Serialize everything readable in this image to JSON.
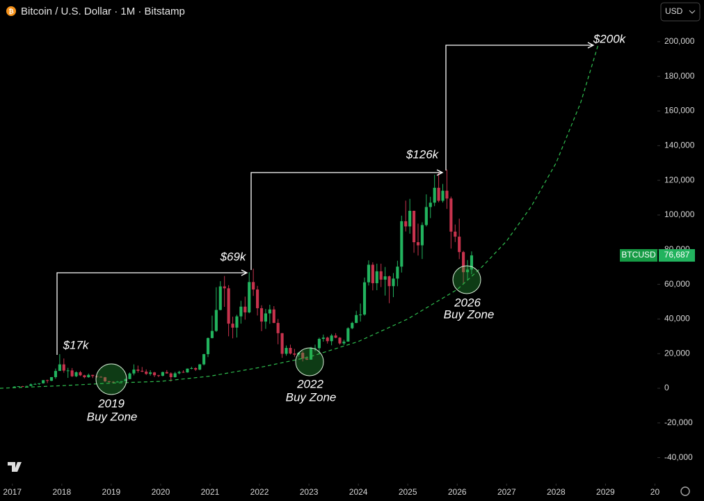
{
  "header": {
    "title": "Bitcoin / U.S. Dollar · 1M · Bitstamp",
    "currency": "USD"
  },
  "chart_data": {
    "type": "candlestick",
    "up_color": "#22b35e",
    "down_color": "#c7334d",
    "grid": false,
    "x": [
      "2017-01",
      "2017-02",
      "2017-03",
      "2017-04",
      "2017-05",
      "2017-06",
      "2017-07",
      "2017-08",
      "2017-09",
      "2017-10",
      "2017-11",
      "2017-12",
      "2018-01",
      "2018-02",
      "2018-03",
      "2018-04",
      "2018-05",
      "2018-06",
      "2018-07",
      "2018-08",
      "2018-09",
      "2018-10",
      "2018-11",
      "2018-12",
      "2019-01",
      "2019-02",
      "2019-03",
      "2019-04",
      "2019-05",
      "2019-06",
      "2019-07",
      "2019-08",
      "2019-09",
      "2019-10",
      "2019-11",
      "2019-12",
      "2020-01",
      "2020-02",
      "2020-03",
      "2020-04",
      "2020-05",
      "2020-06",
      "2020-07",
      "2020-08",
      "2020-09",
      "2020-10",
      "2020-11",
      "2020-12",
      "2021-01",
      "2021-02",
      "2021-03",
      "2021-04",
      "2021-05",
      "2021-06",
      "2021-07",
      "2021-08",
      "2021-09",
      "2021-10",
      "2021-11",
      "2021-12",
      "2022-01",
      "2022-02",
      "2022-03",
      "2022-04",
      "2022-05",
      "2022-06",
      "2022-07",
      "2022-08",
      "2022-09",
      "2022-10",
      "2022-11",
      "2022-12",
      "2023-01",
      "2023-02",
      "2023-03",
      "2023-04",
      "2023-05",
      "2023-06",
      "2023-07",
      "2023-08",
      "2023-09",
      "2023-10",
      "2023-11",
      "2023-12",
      "2024-01",
      "2024-02",
      "2024-03",
      "2024-04",
      "2024-05",
      "2024-06",
      "2024-07",
      "2024-08",
      "2024-09",
      "2024-10",
      "2024-11",
      "2024-12",
      "2025-01",
      "2025-02",
      "2025-03",
      "2025-04",
      "2025-05",
      "2025-06",
      "2025-07",
      "2025-08",
      "2025-09",
      "2025-10",
      "2025-11",
      "2025-12",
      "2026-01",
      "2026-02",
      "2026-03",
      "2026-04"
    ],
    "open": [
      960,
      970,
      1190,
      1080,
      1350,
      2300,
      2480,
      2870,
      4700,
      4340,
      6450,
      10000,
      13800,
      10200,
      10300,
      6930,
      9240,
      7500,
      6390,
      7730,
      7030,
      6630,
      6370,
      4040,
      3740,
      3460,
      3850,
      4100,
      5320,
      8570,
      10800,
      10100,
      9600,
      8300,
      9150,
      7550,
      7200,
      9350,
      8600,
      6430,
      8650,
      9450,
      9140,
      11350,
      11650,
      10780,
      13800,
      19700,
      28990,
      33100,
      45200,
      58800,
      57700,
      37300,
      35000,
      41500,
      47100,
      43800,
      61300,
      57000,
      46200,
      38500,
      43200,
      45500,
      37700,
      31800,
      19900,
      23300,
      20050,
      19400,
      20500,
      17150,
      16540,
      23100,
      23150,
      28500,
      29250,
      27200,
      30450,
      29200,
      25900,
      26950,
      34650,
      37700,
      42250,
      42550,
      61150,
      71300,
      60650,
      67500,
      62700,
      64600,
      58950,
      63300,
      70200,
      96400,
      93400,
      102400,
      84300,
      82500,
      94200,
      104600,
      107100,
      115700,
      108200,
      114000,
      109500,
      90400,
      87500,
      78600,
      67000,
      68500
    ],
    "high": [
      1150,
      1210,
      1350,
      1370,
      2760,
      3000,
      2950,
      4750,
      4980,
      6470,
      11400,
      19700,
      17200,
      11800,
      11700,
      9750,
      10000,
      7780,
      8500,
      7780,
      7400,
      7030,
      6590,
      4310,
      4100,
      4200,
      4120,
      5640,
      9100,
      13800,
      13100,
      12300,
      10900,
      10400,
      9500,
      7750,
      9600,
      10500,
      9200,
      9470,
      10100,
      10400,
      11450,
      12450,
      12100,
      14000,
      19900,
      29300,
      41900,
      58300,
      61800,
      64800,
      59500,
      41300,
      42400,
      50500,
      52900,
      67000,
      69000,
      59100,
      47900,
      45800,
      48200,
      47400,
      40000,
      31900,
      24700,
      25200,
      22700,
      21000,
      21500,
      18400,
      23900,
      25200,
      29200,
      31000,
      29800,
      31400,
      31800,
      29500,
      28000,
      35200,
      38400,
      44700,
      48900,
      63900,
      73800,
      72700,
      71900,
      71900,
      70000,
      65000,
      66500,
      73600,
      99600,
      108300,
      109300,
      102500,
      95000,
      95800,
      111900,
      110500,
      123200,
      124500,
      117900,
      126200,
      110600,
      94500,
      97900,
      79300,
      74000,
      79000
    ],
    "low": [
      750,
      920,
      890,
      1060,
      1330,
      2080,
      1830,
      2670,
      2970,
      4110,
      5500,
      10900,
      9000,
      6000,
      6500,
      6430,
      7060,
      5760,
      6070,
      5880,
      6110,
      6200,
      3650,
      3150,
      3350,
      3370,
      3680,
      4030,
      5300,
      7500,
      9000,
      9350,
      7700,
      7300,
      6500,
      6430,
      6880,
      8450,
      3850,
      6150,
      8100,
      8900,
      9000,
      10950,
      10000,
      10400,
      13200,
      18000,
      28800,
      32500,
      45000,
      47000,
      30000,
      28800,
      29300,
      37300,
      39600,
      43300,
      53300,
      42000,
      33000,
      34300,
      37200,
      37600,
      25400,
      17600,
      18800,
      19500,
      18200,
      18200,
      15500,
      16300,
      16500,
      21400,
      19600,
      26900,
      25800,
      24800,
      28900,
      25200,
      24900,
      26900,
      34100,
      37600,
      38500,
      41900,
      59300,
      56500,
      56600,
      58400,
      53500,
      49100,
      52600,
      58900,
      66800,
      90500,
      89200,
      78200,
      76600,
      74600,
      93400,
      98200,
      105100,
      107300,
      107200,
      103500,
      80600,
      84400,
      74500,
      60000,
      62500,
      65800
    ],
    "close": [
      970,
      1190,
      1080,
      1350,
      2300,
      2480,
      2870,
      4700,
      4340,
      6450,
      10000,
      13800,
      10200,
      10300,
      6930,
      9240,
      7500,
      6390,
      7730,
      7030,
      6630,
      6370,
      4040,
      3740,
      3460,
      3850,
      4100,
      5320,
      8570,
      10800,
      10100,
      9600,
      8300,
      9150,
      7550,
      7200,
      9350,
      8600,
      6430,
      8650,
      9450,
      9140,
      11350,
      11650,
      10780,
      13800,
      19700,
      28990,
      33100,
      45200,
      58800,
      57700,
      37300,
      35000,
      41500,
      47100,
      43800,
      61300,
      57000,
      46200,
      38500,
      43200,
      45500,
      37700,
      31800,
      19900,
      23300,
      20050,
      19400,
      20500,
      17150,
      16540,
      23100,
      23150,
      28500,
      29250,
      27200,
      30450,
      29200,
      25900,
      26950,
      34650,
      37700,
      42250,
      42550,
      61150,
      71300,
      60650,
      67500,
      62700,
      64600,
      58950,
      63300,
      70200,
      96400,
      93400,
      102400,
      84300,
      82500,
      94200,
      104600,
      107100,
      115700,
      108200,
      114000,
      109500,
      90400,
      87500,
      78600,
      67000,
      68500,
      76687
    ],
    "trend_line": {
      "color": "#2fbf4f",
      "x": [
        2016.75,
        2017,
        2018,
        2019,
        2020,
        2021,
        2022,
        2023,
        2024,
        2025,
        2026,
        2026.5,
        2027,
        2027.5,
        2028,
        2028.5,
        2028.85
      ],
      "values": [
        0,
        300,
        1500,
        3000,
        4000,
        7000,
        12000,
        18000,
        27000,
        40000,
        57000,
        70000,
        85000,
        105000,
        130000,
        165000,
        198000
      ]
    },
    "xlim": [
      2016.75,
      2030.05
    ],
    "xticks": [
      2017,
      2018,
      2019,
      2020,
      2021,
      2022,
      2023,
      2024,
      2025,
      2026,
      2027,
      2028,
      2029,
      {
        "value": 2030,
        "label": "20"
      }
    ],
    "ylim": [
      -55000,
      210000
    ],
    "yticks": [
      {
        "value": -40000,
        "label": "-40,000"
      },
      {
        "value": -20000,
        "label": "-20,000"
      },
      0,
      {
        "value": 20000,
        "label": "20,000"
      },
      {
        "value": 40000,
        "label": "40,000"
      },
      {
        "value": 60000,
        "label": "60,000"
      },
      {
        "value": 80000,
        "label": "80,000"
      },
      {
        "value": 100000,
        "label": "100,000"
      },
      {
        "value": 120000,
        "label": "120,000"
      },
      {
        "value": 140000,
        "label": "140,000"
      },
      {
        "value": 160000,
        "label": "160,000"
      },
      {
        "value": 180000,
        "label": "180,000"
      },
      {
        "value": 200000,
        "label": "200,000"
      }
    ],
    "last_price": {
      "symbol": "BTCUSD",
      "value": 76687,
      "label": "76,687"
    },
    "annotations": [
      "$17k",
      "$69k",
      "$126k",
      "$200k"
    ],
    "buy_zones": [
      {
        "year": "2019",
        "label": "Buy Zone"
      },
      {
        "year": "2022",
        "label": "Buy Zone"
      },
      {
        "year": "2026",
        "label": "Buy Zone"
      }
    ]
  }
}
